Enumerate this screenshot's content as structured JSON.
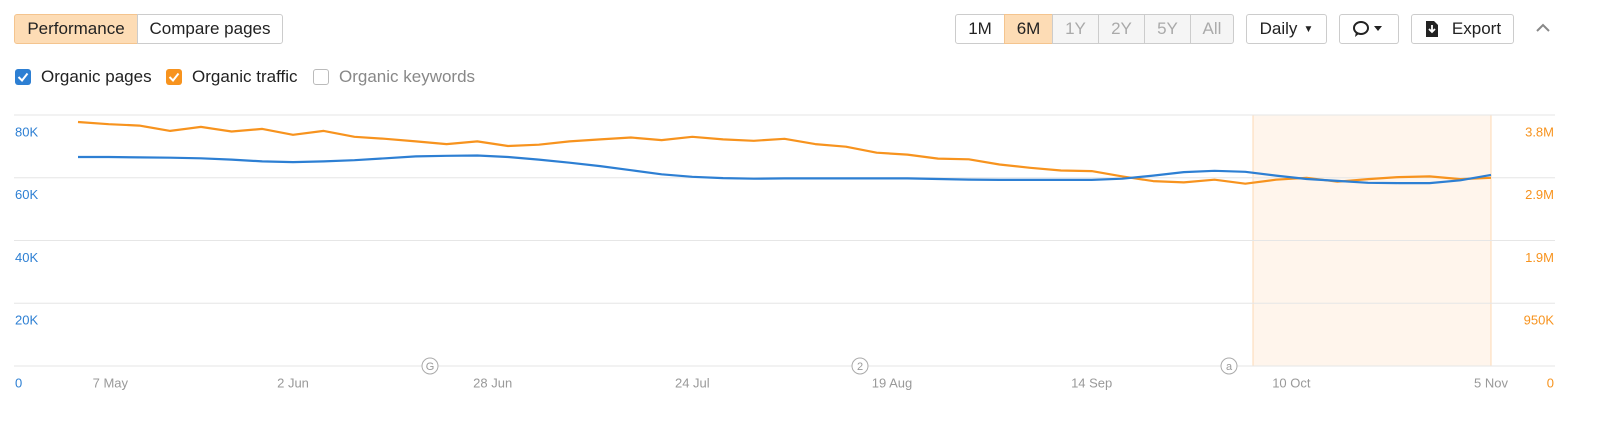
{
  "ui": {
    "tabs": [
      "Performance",
      "Compare pages"
    ],
    "ranges": [
      "1M",
      "6M",
      "1Y",
      "2Y",
      "5Y",
      "All"
    ],
    "interval": "Daily",
    "export": "Export",
    "unchecked_legend": "Organic keywords"
  },
  "chart_data": {
    "type": "line",
    "x": [
      "5 May",
      "9 May",
      "13 May",
      "17 May",
      "21 May",
      "25 May",
      "29 May",
      "2 Jun",
      "6 Jun",
      "10 Jun",
      "14 Jun",
      "18 Jun",
      "22 Jun",
      "26 Jun",
      "30 Jun",
      "4 Jul",
      "8 Jul",
      "12 Jul",
      "16 Jul",
      "20 Jul",
      "24 Jul",
      "28 Jul",
      "1 Aug",
      "5 Aug",
      "9 Aug",
      "13 Aug",
      "17 Aug",
      "21 Aug",
      "25 Aug",
      "29 Aug",
      "2 Sep",
      "6 Sep",
      "10 Sep",
      "14 Sep",
      "18 Sep",
      "22 Sep",
      "26 Sep",
      "30 Sep",
      "4 Oct",
      "8 Oct",
      "12 Oct",
      "16 Oct",
      "20 Oct",
      "24 Oct",
      "28 Oct",
      "1 Nov",
      "5 Nov"
    ],
    "xticks": [
      "7 May",
      "2 Jun",
      "28 Jun",
      "24 Jul",
      "19 Aug",
      "14 Sep",
      "10 Oct",
      "5 Nov"
    ],
    "xlim": [
      "5 May",
      "5 Nov"
    ],
    "series": [
      {
        "name": "Organic pages",
        "color": "#2d7fd3",
        "axis": "y",
        "values": [
          66600,
          66600,
          66500,
          66400,
          66200,
          65800,
          65200,
          65000,
          65200,
          65600,
          66200,
          66800,
          67000,
          67100,
          66600,
          65800,
          64800,
          63700,
          62400,
          61100,
          60300,
          59900,
          59700,
          59800,
          59800,
          59800,
          59800,
          59800,
          59600,
          59400,
          59300,
          59300,
          59300,
          59300,
          59700,
          60700,
          61800,
          62200,
          61900,
          60700,
          59600,
          59000,
          58400,
          58300,
          58300,
          59200,
          60900
        ]
      },
      {
        "name": "Organic traffic",
        "color": "#f7931e",
        "axis": "y2",
        "values": [
          3694000,
          3660000,
          3640000,
          3560000,
          3620000,
          3550000,
          3590000,
          3500000,
          3560000,
          3470000,
          3440000,
          3400000,
          3360000,
          3400000,
          3330000,
          3350000,
          3400000,
          3430000,
          3460000,
          3420000,
          3470000,
          3430000,
          3410000,
          3440000,
          3360000,
          3320000,
          3230000,
          3200000,
          3140000,
          3130000,
          3050000,
          3000000,
          2960000,
          2950000,
          2870000,
          2800000,
          2780000,
          2820000,
          2760000,
          2820000,
          2850000,
          2790000,
          2830000,
          2860000,
          2870000,
          2830000,
          2850000
        ]
      }
    ],
    "ylim": [
      0,
      80000
    ],
    "yticks": [
      0,
      {
        "value": 20000,
        "label": "20K"
      },
      {
        "value": 40000,
        "label": "40K"
      },
      {
        "value": 60000,
        "label": "60K"
      },
      {
        "value": 80000,
        "label": "80K"
      }
    ],
    "y2lim": [
      0,
      3800000
    ],
    "y2ticks": [
      0,
      {
        "value": 950000,
        "label": "950K"
      },
      {
        "value": 1900000,
        "label": "1.9M"
      },
      {
        "value": 2850000,
        "label": "2.9M"
      },
      {
        "value": 3800000,
        "label": "3.8M"
      }
    ],
    "annotations": [
      "G",
      "2",
      "a"
    ],
    "grid": true
  }
}
